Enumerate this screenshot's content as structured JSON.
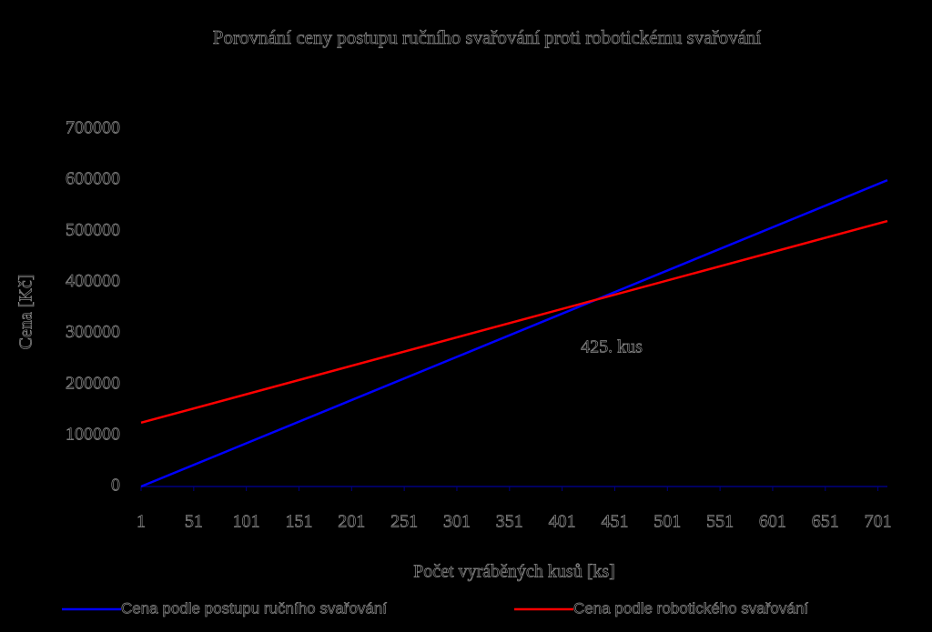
{
  "chart_data": {
    "type": "line",
    "title": "Porovnání ceny postupu ručního svařování proti robotickému svařování",
    "x_label": "Počet vyráběných kusů [ks]",
    "y_label": "Cena [Kč]",
    "annotation": "425. kus",
    "x": [
      1,
      710
    ],
    "series": [
      {
        "name": "Cena podle postupu ručního svařování",
        "color": "#0000ff",
        "values": [
          0,
          600000
        ]
      },
      {
        "name": "Cena podle robotického svařování",
        "color": "#ff0000",
        "values": [
          125000,
          520000
        ]
      }
    ],
    "xlim": [
      1,
      710
    ],
    "xticks": [
      1,
      51,
      101,
      151,
      201,
      251,
      301,
      351,
      401,
      451,
      501,
      551,
      601,
      651,
      701
    ],
    "ylim": [
      0,
      700000
    ],
    "yticks": [
      0,
      100000,
      200000,
      300000,
      400000,
      500000,
      600000,
      700000
    ],
    "axis_color": "#000080",
    "grid": false,
    "legend": "bottom"
  }
}
